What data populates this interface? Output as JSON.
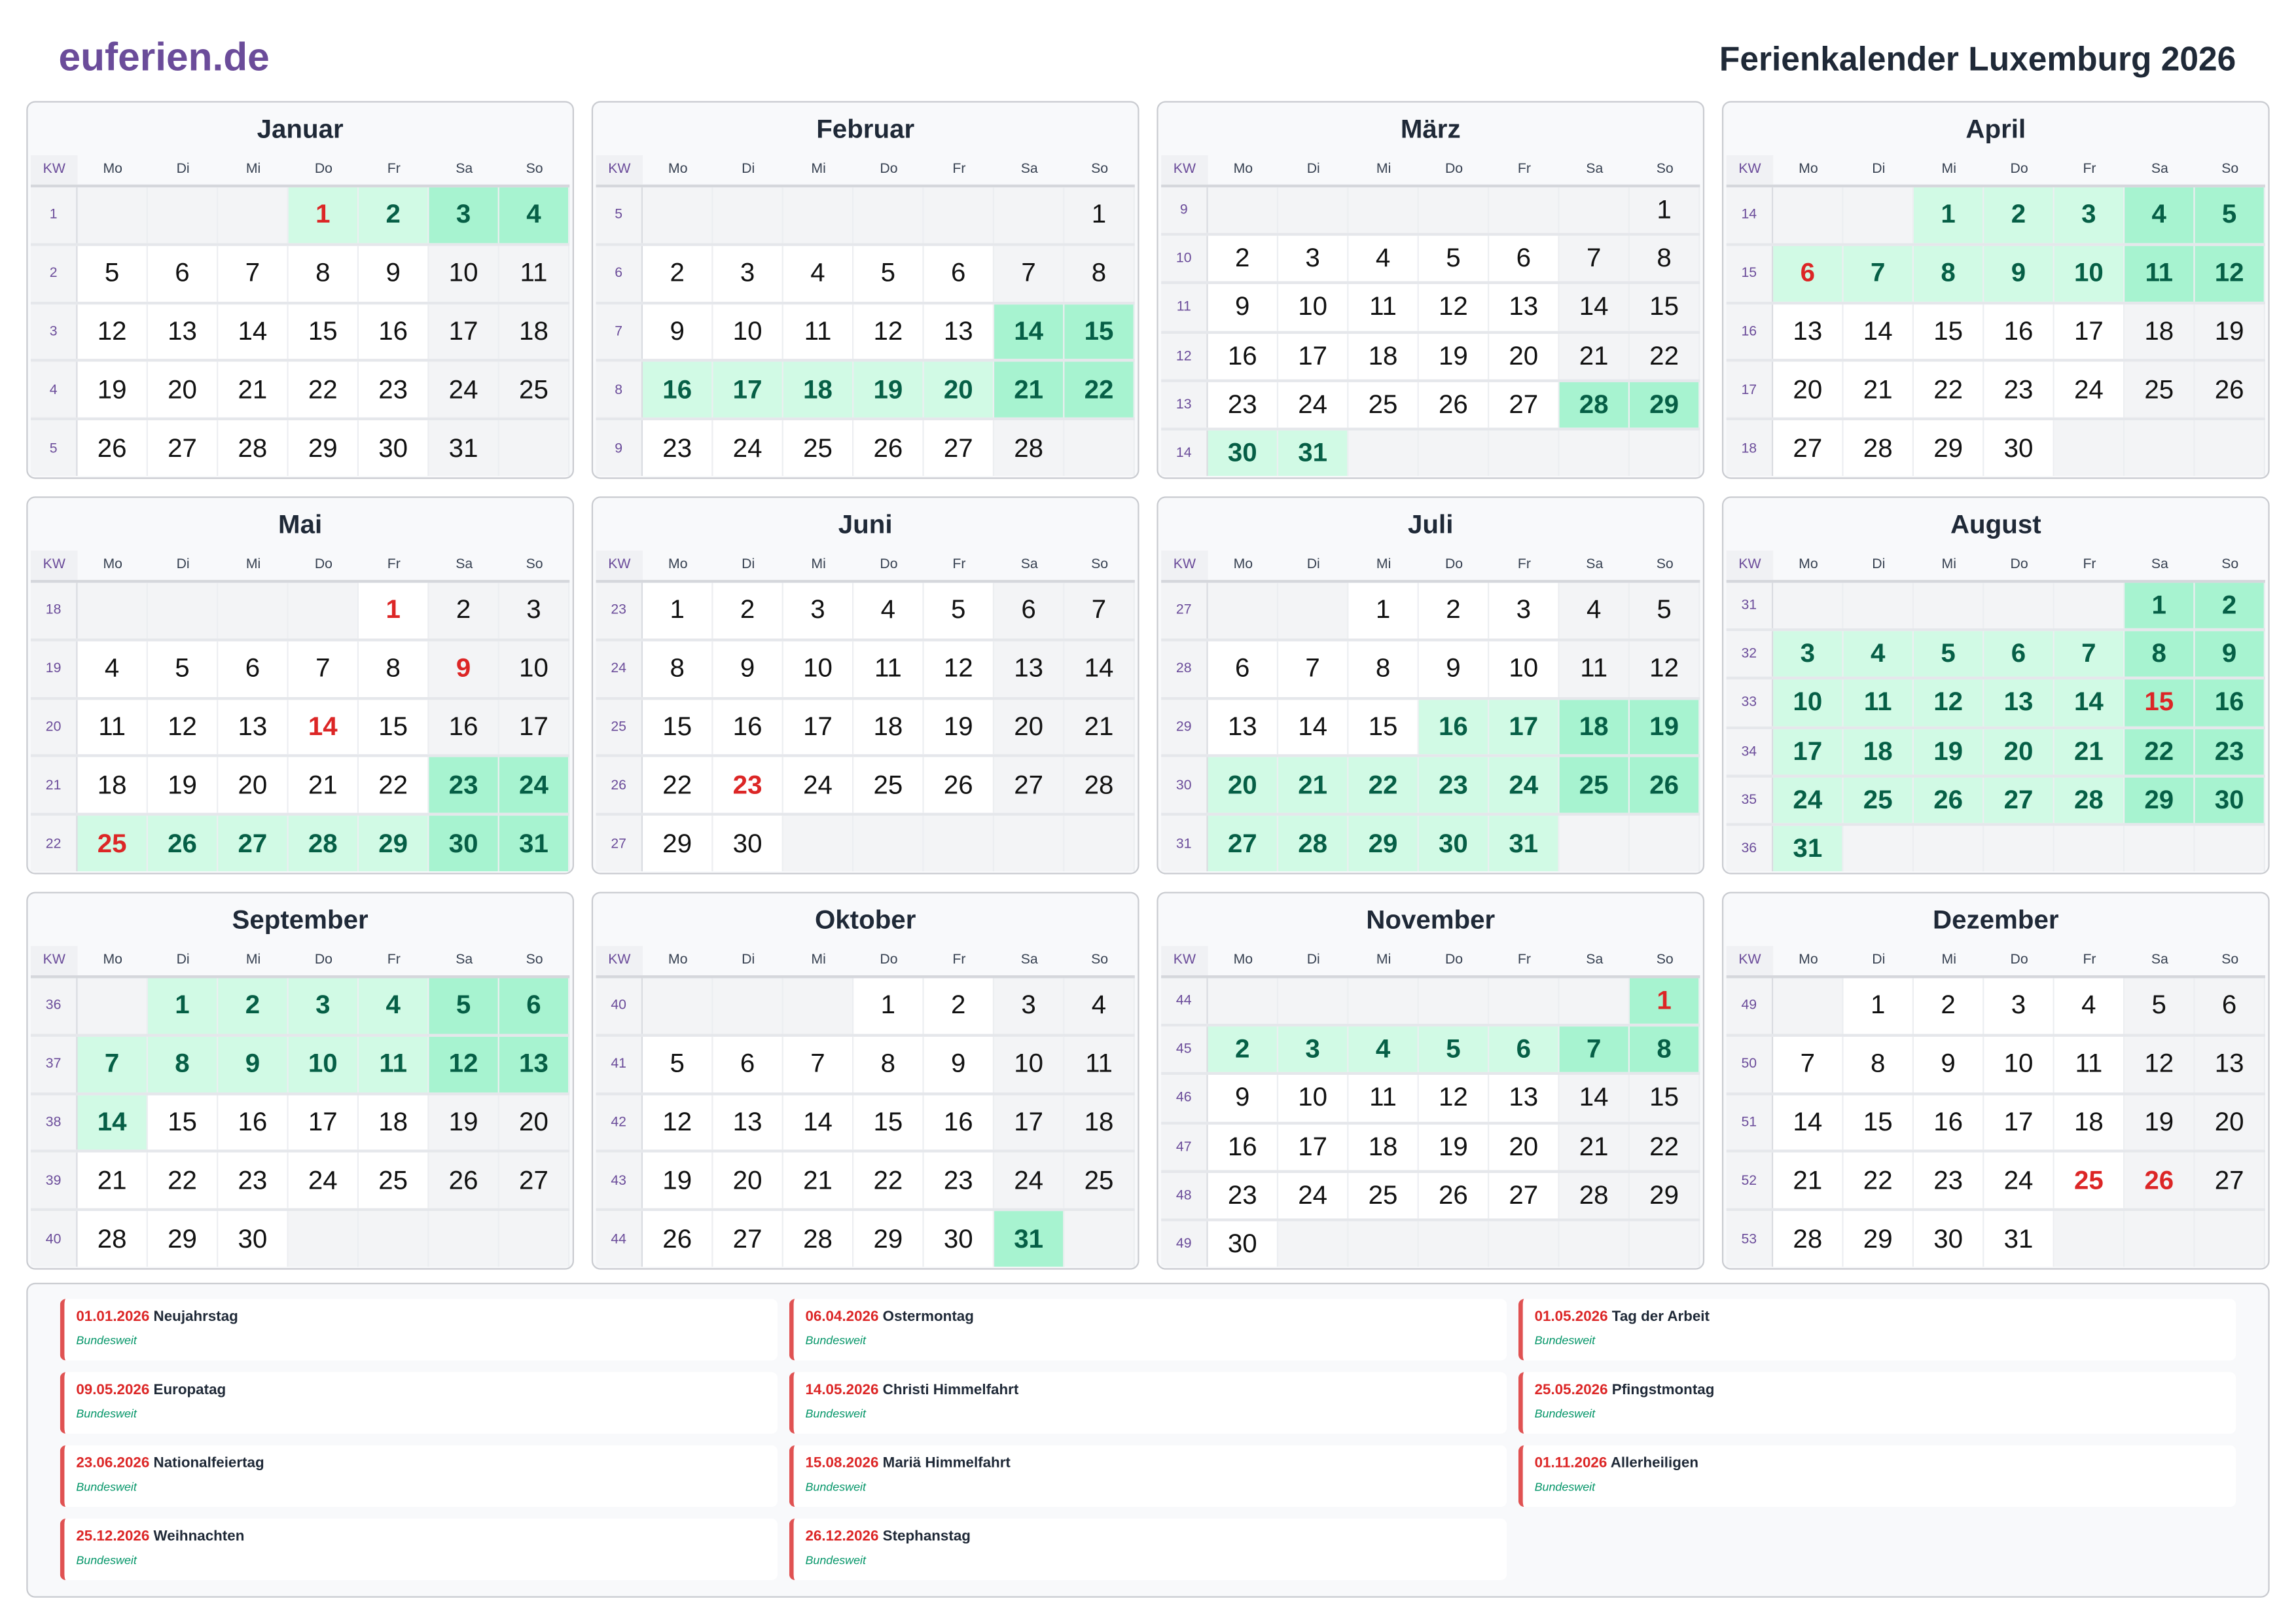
{
  "header": {
    "logo": "euferien.de",
    "title": "Ferienkalender Luxemburg 2026"
  },
  "colors": {
    "brand": "#6b4c9a",
    "holiday": "#dc2626",
    "vacation": "#d1fae5",
    "vacation_weekend": "#a7f3d0",
    "vacation_text": "#065f46",
    "weekend": "#f3f4f6"
  },
  "weekday_labels": {
    "kw": "KW",
    "days": [
      "Mo",
      "Di",
      "Mi",
      "Do",
      "Fr",
      "Sa",
      "So"
    ]
  },
  "months": [
    {
      "name": "Januar",
      "weeks": [
        [
          1,
          [
            0,
            0,
            0,
            1,
            2,
            3,
            4
          ]
        ],
        [
          2,
          [
            5,
            6,
            7,
            8,
            9,
            10,
            11
          ]
        ],
        [
          3,
          [
            12,
            13,
            14,
            15,
            16,
            17,
            18
          ]
        ],
        [
          4,
          [
            19,
            20,
            21,
            22,
            23,
            24,
            25
          ]
        ],
        [
          5,
          [
            26,
            27,
            28,
            29,
            30,
            31,
            0
          ]
        ]
      ],
      "holidays": [
        1
      ],
      "vacation": [
        1,
        2,
        3,
        4
      ]
    },
    {
      "name": "Februar",
      "weeks": [
        [
          5,
          [
            0,
            0,
            0,
            0,
            0,
            0,
            1
          ]
        ],
        [
          6,
          [
            2,
            3,
            4,
            5,
            6,
            7,
            8
          ]
        ],
        [
          7,
          [
            9,
            10,
            11,
            12,
            13,
            14,
            15
          ]
        ],
        [
          8,
          [
            16,
            17,
            18,
            19,
            20,
            21,
            22
          ]
        ],
        [
          9,
          [
            23,
            24,
            25,
            26,
            27,
            28,
            0
          ]
        ]
      ],
      "holidays": [],
      "vacation": [
        14,
        15,
        16,
        17,
        18,
        19,
        20,
        21,
        22
      ]
    },
    {
      "name": "März",
      "weeks": [
        [
          9,
          [
            0,
            0,
            0,
            0,
            0,
            0,
            1
          ]
        ],
        [
          10,
          [
            2,
            3,
            4,
            5,
            6,
            7,
            8
          ]
        ],
        [
          11,
          [
            9,
            10,
            11,
            12,
            13,
            14,
            15
          ]
        ],
        [
          12,
          [
            16,
            17,
            18,
            19,
            20,
            21,
            22
          ]
        ],
        [
          13,
          [
            23,
            24,
            25,
            26,
            27,
            28,
            29
          ]
        ],
        [
          14,
          [
            30,
            31,
            0,
            0,
            0,
            0,
            0
          ]
        ]
      ],
      "holidays": [],
      "vacation": [
        28,
        29,
        30,
        31
      ]
    },
    {
      "name": "April",
      "weeks": [
        [
          14,
          [
            0,
            0,
            1,
            2,
            3,
            4,
            5
          ]
        ],
        [
          15,
          [
            6,
            7,
            8,
            9,
            10,
            11,
            12
          ]
        ],
        [
          16,
          [
            13,
            14,
            15,
            16,
            17,
            18,
            19
          ]
        ],
        [
          17,
          [
            20,
            21,
            22,
            23,
            24,
            25,
            26
          ]
        ],
        [
          18,
          [
            27,
            28,
            29,
            30,
            0,
            0,
            0
          ]
        ]
      ],
      "holidays": [
        6
      ],
      "vacation": [
        1,
        2,
        3,
        4,
        5,
        6,
        7,
        8,
        9,
        10,
        11,
        12
      ]
    },
    {
      "name": "Mai",
      "weeks": [
        [
          18,
          [
            0,
            0,
            0,
            0,
            1,
            2,
            3
          ]
        ],
        [
          19,
          [
            4,
            5,
            6,
            7,
            8,
            9,
            10
          ]
        ],
        [
          20,
          [
            11,
            12,
            13,
            14,
            15,
            16,
            17
          ]
        ],
        [
          21,
          [
            18,
            19,
            20,
            21,
            22,
            23,
            24
          ]
        ],
        [
          22,
          [
            25,
            26,
            27,
            28,
            29,
            30,
            31
          ]
        ]
      ],
      "holidays": [
        1,
        9,
        14,
        25
      ],
      "vacation": [
        23,
        24,
        25,
        26,
        27,
        28,
        29,
        30,
        31
      ]
    },
    {
      "name": "Juni",
      "weeks": [
        [
          23,
          [
            1,
            2,
            3,
            4,
            5,
            6,
            7
          ]
        ],
        [
          24,
          [
            8,
            9,
            10,
            11,
            12,
            13,
            14
          ]
        ],
        [
          25,
          [
            15,
            16,
            17,
            18,
            19,
            20,
            21
          ]
        ],
        [
          26,
          [
            22,
            23,
            24,
            25,
            26,
            27,
            28
          ]
        ],
        [
          27,
          [
            29,
            30,
            0,
            0,
            0,
            0,
            0
          ]
        ]
      ],
      "holidays": [
        23
      ],
      "vacation": []
    },
    {
      "name": "Juli",
      "weeks": [
        [
          27,
          [
            0,
            0,
            1,
            2,
            3,
            4,
            5
          ]
        ],
        [
          28,
          [
            6,
            7,
            8,
            9,
            10,
            11,
            12
          ]
        ],
        [
          29,
          [
            13,
            14,
            15,
            16,
            17,
            18,
            19
          ]
        ],
        [
          30,
          [
            20,
            21,
            22,
            23,
            24,
            25,
            26
          ]
        ],
        [
          31,
          [
            27,
            28,
            29,
            30,
            31,
            0,
            0
          ]
        ]
      ],
      "holidays": [],
      "vacation": [
        16,
        17,
        18,
        19,
        20,
        21,
        22,
        23,
        24,
        25,
        26,
        27,
        28,
        29,
        30,
        31
      ]
    },
    {
      "name": "August",
      "weeks": [
        [
          31,
          [
            0,
            0,
            0,
            0,
            0,
            1,
            2
          ]
        ],
        [
          32,
          [
            3,
            4,
            5,
            6,
            7,
            8,
            9
          ]
        ],
        [
          33,
          [
            10,
            11,
            12,
            13,
            14,
            15,
            16
          ]
        ],
        [
          34,
          [
            17,
            18,
            19,
            20,
            21,
            22,
            23
          ]
        ],
        [
          35,
          [
            24,
            25,
            26,
            27,
            28,
            29,
            30
          ]
        ],
        [
          36,
          [
            31,
            0,
            0,
            0,
            0,
            0,
            0
          ]
        ]
      ],
      "holidays": [
        15
      ],
      "vacation": [
        1,
        2,
        3,
        4,
        5,
        6,
        7,
        8,
        9,
        10,
        11,
        12,
        13,
        14,
        15,
        16,
        17,
        18,
        19,
        20,
        21,
        22,
        23,
        24,
        25,
        26,
        27,
        28,
        29,
        30,
        31
      ]
    },
    {
      "name": "September",
      "weeks": [
        [
          36,
          [
            0,
            1,
            2,
            3,
            4,
            5,
            6
          ]
        ],
        [
          37,
          [
            7,
            8,
            9,
            10,
            11,
            12,
            13
          ]
        ],
        [
          38,
          [
            14,
            15,
            16,
            17,
            18,
            19,
            20
          ]
        ],
        [
          39,
          [
            21,
            22,
            23,
            24,
            25,
            26,
            27
          ]
        ],
        [
          40,
          [
            28,
            29,
            30,
            0,
            0,
            0,
            0
          ]
        ]
      ],
      "holidays": [],
      "vacation": [
        1,
        2,
        3,
        4,
        5,
        6,
        7,
        8,
        9,
        10,
        11,
        12,
        13,
        14
      ]
    },
    {
      "name": "Oktober",
      "weeks": [
        [
          40,
          [
            0,
            0,
            0,
            1,
            2,
            3,
            4
          ]
        ],
        [
          41,
          [
            5,
            6,
            7,
            8,
            9,
            10,
            11
          ]
        ],
        [
          42,
          [
            12,
            13,
            14,
            15,
            16,
            17,
            18
          ]
        ],
        [
          43,
          [
            19,
            20,
            21,
            22,
            23,
            24,
            25
          ]
        ],
        [
          44,
          [
            26,
            27,
            28,
            29,
            30,
            31,
            0
          ]
        ]
      ],
      "holidays": [],
      "vacation": [
        31
      ]
    },
    {
      "name": "November",
      "weeks": [
        [
          44,
          [
            0,
            0,
            0,
            0,
            0,
            0,
            1
          ]
        ],
        [
          45,
          [
            2,
            3,
            4,
            5,
            6,
            7,
            8
          ]
        ],
        [
          46,
          [
            9,
            10,
            11,
            12,
            13,
            14,
            15
          ]
        ],
        [
          47,
          [
            16,
            17,
            18,
            19,
            20,
            21,
            22
          ]
        ],
        [
          48,
          [
            23,
            24,
            25,
            26,
            27,
            28,
            29
          ]
        ],
        [
          49,
          [
            30,
            0,
            0,
            0,
            0,
            0,
            0
          ]
        ]
      ],
      "holidays": [
        1
      ],
      "vacation": [
        1,
        2,
        3,
        4,
        5,
        6,
        7,
        8
      ]
    },
    {
      "name": "Dezember",
      "weeks": [
        [
          49,
          [
            0,
            1,
            2,
            3,
            4,
            5,
            6
          ]
        ],
        [
          50,
          [
            7,
            8,
            9,
            10,
            11,
            12,
            13
          ]
        ],
        [
          51,
          [
            14,
            15,
            16,
            17,
            18,
            19,
            20
          ]
        ],
        [
          52,
          [
            21,
            22,
            23,
            24,
            25,
            26,
            27
          ]
        ],
        [
          53,
          [
            28,
            29,
            30,
            31,
            0,
            0,
            0
          ]
        ]
      ],
      "holidays": [
        25,
        26
      ],
      "vacation": []
    }
  ],
  "holiday_list": [
    {
      "date": "01.01.2026",
      "name": "Neujahrstag",
      "region": "Bundesweit"
    },
    {
      "date": "06.04.2026",
      "name": "Ostermontag",
      "region": "Bundesweit"
    },
    {
      "date": "01.05.2026",
      "name": "Tag der Arbeit",
      "region": "Bundesweit"
    },
    {
      "date": "09.05.2026",
      "name": "Europatag",
      "region": "Bundesweit"
    },
    {
      "date": "14.05.2026",
      "name": "Christi Himmelfahrt",
      "region": "Bundesweit"
    },
    {
      "date": "25.05.2026",
      "name": "Pfingstmontag",
      "region": "Bundesweit"
    },
    {
      "date": "23.06.2026",
      "name": "Nationalfeiertag",
      "region": "Bundesweit"
    },
    {
      "date": "15.08.2026",
      "name": "Mariä Himmelfahrt",
      "region": "Bundesweit"
    },
    {
      "date": "01.11.2026",
      "name": "Allerheiligen",
      "region": "Bundesweit"
    },
    {
      "date": "25.12.2026",
      "name": "Weihnachten",
      "region": "Bundesweit"
    },
    {
      "date": "26.12.2026",
      "name": "Stephanstag",
      "region": "Bundesweit"
    }
  ]
}
